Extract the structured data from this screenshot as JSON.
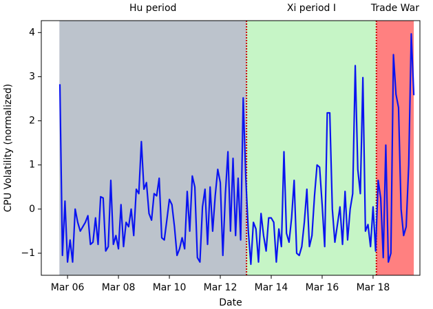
{
  "chart_data": {
    "type": "line",
    "xlabel": "Date",
    "ylabel": "CPU Volatility (normalized)",
    "xlim": [
      4.97,
      19.84
    ],
    "ylim": [
      -1.5,
      4.27
    ],
    "xticks": [
      {
        "value": 6,
        "label": "Mar 06"
      },
      {
        "value": 8,
        "label": "Mar 08"
      },
      {
        "value": 10,
        "label": "Mar 10"
      },
      {
        "value": 12,
        "label": "Mar 12"
      },
      {
        "value": 14,
        "label": "Mar 14"
      },
      {
        "value": 16,
        "label": "Mar 16"
      },
      {
        "value": 18,
        "label": "Mar 18"
      }
    ],
    "yticks": [
      {
        "value": -1,
        "label": "−1"
      },
      0,
      1,
      2,
      3,
      4
    ],
    "regions": [
      {
        "label": "Hu period",
        "start": 5.68,
        "end": 13.03,
        "color": "#bcc3cc"
      },
      {
        "label": "Xi period I",
        "start": 13.03,
        "end": 18.13,
        "color": "#c6f5c6"
      },
      {
        "label": "Trade War",
        "start": 18.13,
        "end": 19.6,
        "color": "#ff8080"
      }
    ],
    "boundary_color": "#cc0000",
    "x": [
      5.7,
      5.8,
      5.9,
      6.0,
      6.1,
      6.2,
      6.3,
      6.4,
      6.5,
      6.6,
      6.7,
      6.8,
      6.9,
      7.0,
      7.1,
      7.2,
      7.3,
      7.4,
      7.5,
      7.6,
      7.7,
      7.8,
      7.9,
      8.0,
      8.1,
      8.2,
      8.3,
      8.4,
      8.5,
      8.6,
      8.7,
      8.8,
      8.9,
      9.0,
      9.1,
      9.2,
      9.3,
      9.4,
      9.5,
      9.6,
      9.7,
      9.8,
      9.9,
      10.0,
      10.1,
      10.2,
      10.3,
      10.4,
      10.5,
      10.6,
      10.7,
      10.8,
      10.9,
      11.0,
      11.1,
      11.2,
      11.3,
      11.4,
      11.5,
      11.6,
      11.7,
      11.8,
      11.9,
      12.0,
      12.1,
      12.2,
      12.3,
      12.4,
      12.5,
      12.6,
      12.7,
      12.8,
      12.9,
      13.0,
      13.1,
      13.2,
      13.3,
      13.4,
      13.5,
      13.6,
      13.7,
      13.8,
      13.9,
      14.0,
      14.1,
      14.2,
      14.3,
      14.4,
      14.5,
      14.6,
      14.7,
      14.8,
      14.9,
      15.0,
      15.1,
      15.2,
      15.3,
      15.4,
      15.5,
      15.6,
      15.7,
      15.8,
      15.9,
      16.0,
      16.1,
      16.2,
      16.3,
      16.4,
      16.5,
      16.6,
      16.7,
      16.8,
      16.9,
      17.0,
      17.1,
      17.2,
      17.3,
      17.4,
      17.5,
      17.6,
      17.7,
      17.8,
      17.9,
      18.0,
      18.1,
      18.2,
      18.3,
      18.4,
      18.5,
      18.6,
      18.7,
      18.8,
      18.9,
      19.0,
      19.1,
      19.2,
      19.3,
      19.4,
      19.5,
      19.6
    ],
    "series": [
      {
        "color": "#0a14f0",
        "values": [
          2.83,
          -1.05,
          0.18,
          -1.2,
          -0.7,
          -1.2,
          0,
          -0.3,
          -0.5,
          -0.4,
          -0.3,
          -0.15,
          -0.8,
          -0.75,
          -0.2,
          -0.8,
          0.28,
          0.25,
          -0.95,
          -0.85,
          0.65,
          -0.8,
          -0.6,
          -0.9,
          0.1,
          -0.85,
          -0.3,
          -0.4,
          0.0,
          -0.6,
          0.45,
          0.35,
          1.53,
          0.45,
          0.6,
          -0.1,
          -0.25,
          0.35,
          0.3,
          0.7,
          -0.65,
          -0.7,
          -0.25,
          0.22,
          0.1,
          -0.4,
          -1.05,
          -0.9,
          -0.65,
          -0.9,
          0.4,
          -0.5,
          0.75,
          0.5,
          -1.1,
          -1.2,
          0.05,
          0.45,
          -0.8,
          0.5,
          -0.5,
          0.3,
          0.9,
          0.6,
          -1.05,
          0.35,
          1.3,
          -0.5,
          1.15,
          -0.6,
          0.7,
          -0.7,
          2.52,
          0.72,
          -0.5,
          -1.25,
          -0.3,
          -0.45,
          -1.2,
          -0.1,
          -0.6,
          -0.95,
          -0.2,
          -0.2,
          -0.3,
          -1.2,
          -0.45,
          -0.85,
          1.3,
          -0.55,
          -0.75,
          -0.2,
          0.65,
          -1.0,
          -1.05,
          -0.85,
          -0.3,
          0.45,
          -0.85,
          -0.6,
          0.3,
          1.0,
          0.95,
          0.1,
          -0.85,
          2.18,
          2.18,
          0.0,
          -0.75,
          -0.35,
          0.05,
          -0.8,
          0.4,
          -0.7,
          0.0,
          0.35,
          3.25,
          0.9,
          0.35,
          2.98,
          -0.5,
          -0.35,
          -0.85,
          0.05,
          -0.95,
          0.65,
          0.25,
          -1.1,
          1.45,
          -1.2,
          -1.0,
          3.5,
          2.6,
          2.3,
          0.0,
          -0.6,
          -0.4,
          1.0,
          3.97,
          2.58
        ]
      }
    ]
  }
}
